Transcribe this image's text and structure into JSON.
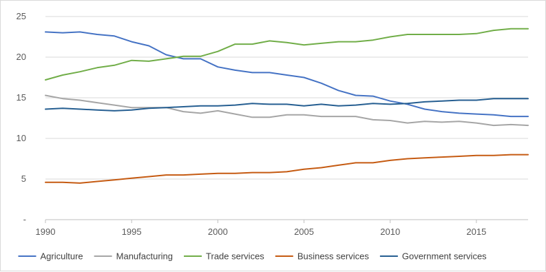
{
  "chart_data": {
    "type": "line",
    "title": "",
    "xlabel": "",
    "ylabel": "",
    "xlim": [
      1990,
      2018
    ],
    "ylim": [
      0,
      25
    ],
    "x_ticks": [
      "1990",
      "1995",
      "2000",
      "2005",
      "2010",
      "2015"
    ],
    "y_ticks": [
      "-",
      "5",
      "10",
      "15",
      "20",
      "25"
    ],
    "grid": "horizontal",
    "legend_position": "bottom",
    "x": [
      1990,
      1991,
      1992,
      1993,
      1994,
      1995,
      1996,
      1997,
      1998,
      1999,
      2000,
      2001,
      2002,
      2003,
      2004,
      2005,
      2006,
      2007,
      2008,
      2009,
      2010,
      2011,
      2012,
      2013,
      2014,
      2015,
      2016,
      2017,
      2018
    ],
    "series": [
      {
        "name": "Agriculture",
        "color": "#4472c4",
        "values": [
          23.1,
          23.0,
          23.1,
          22.8,
          22.6,
          21.9,
          21.4,
          20.3,
          19.8,
          19.8,
          18.8,
          18.4,
          18.1,
          18.1,
          17.8,
          17.5,
          16.8,
          15.9,
          15.3,
          15.2,
          14.6,
          14.2,
          13.6,
          13.3,
          13.1,
          13.0,
          12.9,
          12.7,
          12.7
        ]
      },
      {
        "name": "Manufacturing",
        "color": "#a5a5a5",
        "values": [
          15.3,
          14.9,
          14.7,
          14.4,
          14.1,
          13.8,
          13.8,
          13.8,
          13.3,
          13.1,
          13.4,
          13.0,
          12.6,
          12.6,
          12.9,
          12.9,
          12.7,
          12.7,
          12.7,
          12.3,
          12.2,
          11.9,
          12.1,
          12.0,
          12.1,
          11.9,
          11.6,
          11.7,
          11.6
        ]
      },
      {
        "name": "Trade services",
        "color": "#70ad47",
        "values": [
          17.2,
          17.8,
          18.2,
          18.7,
          19.0,
          19.6,
          19.5,
          19.8,
          20.1,
          20.1,
          20.7,
          21.6,
          21.6,
          22.0,
          21.8,
          21.5,
          21.7,
          21.9,
          21.9,
          22.1,
          22.5,
          22.8,
          22.8,
          22.8,
          22.8,
          22.9,
          23.3,
          23.5,
          23.5
        ]
      },
      {
        "name": "Business services",
        "color": "#c55a11",
        "values": [
          4.6,
          4.6,
          4.5,
          4.7,
          4.9,
          5.1,
          5.3,
          5.5,
          5.5,
          5.6,
          5.7,
          5.7,
          5.8,
          5.8,
          5.9,
          6.2,
          6.4,
          6.7,
          7.0,
          7.0,
          7.3,
          7.5,
          7.6,
          7.7,
          7.8,
          7.9,
          7.9,
          8.0,
          8.0
        ]
      },
      {
        "name": "Government services",
        "color": "#255e91",
        "values": [
          13.6,
          13.7,
          13.6,
          13.5,
          13.4,
          13.5,
          13.7,
          13.8,
          13.9,
          14.0,
          14.0,
          14.1,
          14.3,
          14.2,
          14.2,
          14.0,
          14.2,
          14.0,
          14.1,
          14.3,
          14.2,
          14.3,
          14.5,
          14.6,
          14.7,
          14.7,
          14.9,
          14.9,
          14.9
        ]
      }
    ]
  }
}
